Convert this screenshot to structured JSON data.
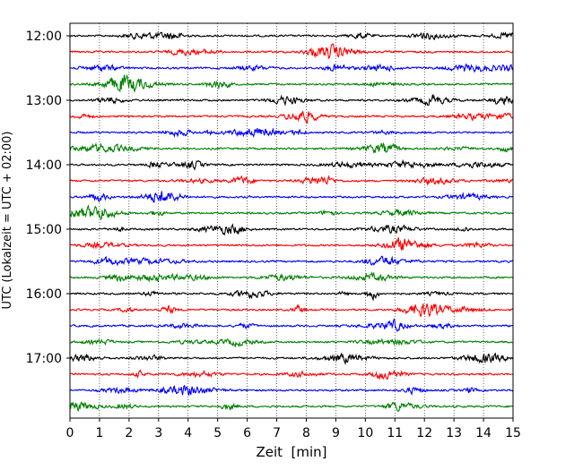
{
  "chart_data": {
    "type": "line",
    "title": "",
    "xlabel": "Zeit  [min]",
    "ylabel": "UTC (Lokalzeit = UTC + 02:00)",
    "xlim": [
      0,
      15
    ],
    "x_ticks": [
      0,
      1,
      2,
      3,
      4,
      5,
      6,
      7,
      8,
      9,
      10,
      11,
      12,
      13,
      14,
      15
    ],
    "x_tick_labels": [
      "0",
      "1",
      "2",
      "3",
      "4",
      "5",
      "6",
      "7",
      "8",
      "9",
      "10",
      "11",
      "12",
      "13",
      "14",
      "15"
    ],
    "x_grid": "dotted",
    "y_tick_labels": [
      "12:00",
      "13:00",
      "14:00",
      "15:00",
      "16:00",
      "17:00"
    ],
    "colors": {
      "trace_cycle": [
        "#000000",
        "#ff0000",
        "#0000ff",
        "#008000"
      ]
    },
    "trace_count": 24,
    "trace_start_label": "12:00"
  }
}
